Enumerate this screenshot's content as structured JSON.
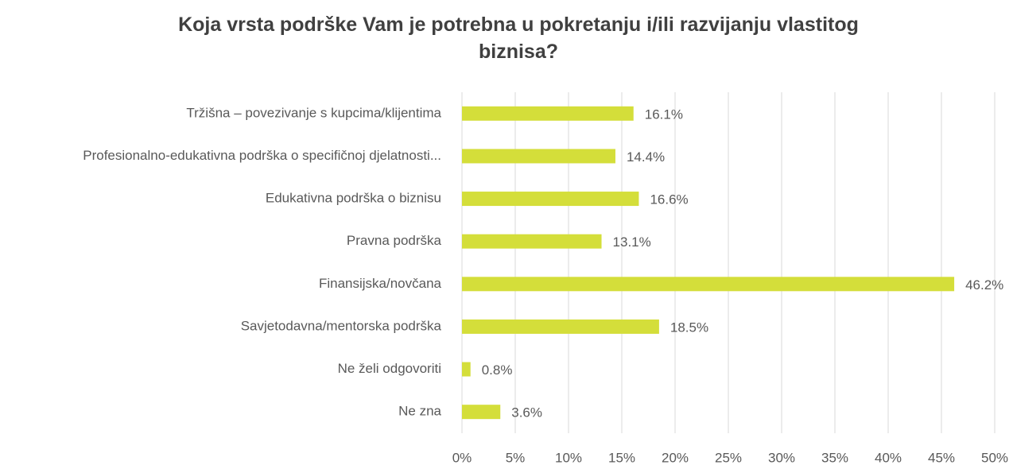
{
  "chart_data": {
    "type": "bar",
    "orientation": "horizontal",
    "title": "Koja vrsta podrške Vam je potrebna u pokretanju i/ili razvijanju vlastitog biznisa?",
    "categories": [
      "Tržišna – povezivanje s kupcima/klijentima",
      "Profesionalno-edukativna podrška o specifičnoj djelatnosti...",
      "Edukativna podrška o biznisu",
      "Pravna podrška",
      "Finansijska/novčana",
      "Savjetodavna/mentorska podrška",
      "Ne želi odgovoriti",
      "Ne zna"
    ],
    "values": [
      16.1,
      14.4,
      16.6,
      13.1,
      46.2,
      18.5,
      0.8,
      3.6
    ],
    "value_labels": [
      "16.1%",
      "14.4%",
      "16.6%",
      "13.1%",
      "46.2%",
      "18.5%",
      "0.8%",
      "3.6%"
    ],
    "color": "#d4de3a",
    "xlim": [
      0,
      50
    ],
    "xticks": [
      {
        "value": 0,
        "label": "0%"
      },
      {
        "value": 5,
        "label": "5%"
      },
      {
        "value": 10,
        "label": "10%"
      },
      {
        "value": 15,
        "label": "15%"
      },
      {
        "value": 20,
        "label": "20%"
      },
      {
        "value": 25,
        "label": "25%"
      },
      {
        "value": 30,
        "label": "30%"
      },
      {
        "value": 35,
        "label": "35%"
      },
      {
        "value": 40,
        "label": "40%"
      },
      {
        "value": 45,
        "label": "45%"
      },
      {
        "value": 50,
        "label": "50%"
      }
    ],
    "grid": true
  }
}
